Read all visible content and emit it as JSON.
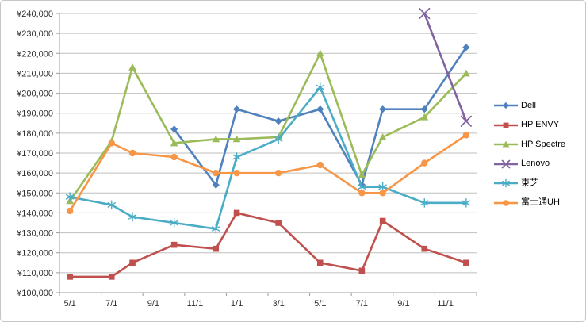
{
  "chart_data": {
    "type": "line",
    "title": "",
    "xlabel": "",
    "ylabel": "",
    "grid": "horizontal",
    "legend_position": "right",
    "y_axis": {
      "min": 100000,
      "max": 240000,
      "step": 10000,
      "prefix": "¥",
      "tick_labels": [
        "¥100,000",
        "¥110,000",
        "¥120,000",
        "¥130,000",
        "¥140,000",
        "¥150,000",
        "¥160,000",
        "¥170,000",
        "¥180,000",
        "¥190,000",
        "¥200,000",
        "¥210,000",
        "¥220,000",
        "¥230,000",
        "¥240,000"
      ]
    },
    "x_axis": {
      "slot_count": 20,
      "label_slots": [
        0,
        2,
        4,
        6,
        8,
        10,
        12,
        14,
        16,
        18
      ],
      "tick_labels": [
        "5/1",
        "7/1",
        "9/1",
        "11/1",
        "1/1",
        "3/1",
        "5/1",
        "7/1",
        "9/1",
        "11/1"
      ]
    },
    "point_slots": [
      0,
      2,
      3,
      5,
      7,
      8,
      10,
      12,
      14,
      15,
      17,
      19
    ],
    "series": [
      {
        "name": "Dell",
        "color": "#4F81BD",
        "marker": "diamond",
        "values": [
          null,
          null,
          null,
          182000,
          154000,
          192000,
          186000,
          192000,
          154000,
          192000,
          192000,
          223000
        ]
      },
      {
        "name": "HP ENVY",
        "color": "#C0504D",
        "marker": "square",
        "values": [
          108000,
          108000,
          115000,
          124000,
          122000,
          140000,
          135000,
          115000,
          111000,
          136000,
          122000,
          115000
        ]
      },
      {
        "name": "HP Spectre",
        "color": "#9BBB59",
        "marker": "triangle",
        "values": [
          146000,
          176000,
          213000,
          175000,
          177000,
          177000,
          178000,
          220000,
          159000,
          178000,
          188000,
          210000
        ]
      },
      {
        "name": "Lenovo",
        "color": "#8064A2",
        "marker": "x",
        "values": [
          null,
          null,
          null,
          null,
          null,
          null,
          null,
          null,
          null,
          null,
          240000,
          186000
        ]
      },
      {
        "name": "東芝",
        "color": "#4BACC6",
        "marker": "asterisk",
        "values": [
          148000,
          144000,
          138000,
          135000,
          132000,
          168000,
          177000,
          203000,
          153000,
          153000,
          145000,
          145000
        ]
      },
      {
        "name": "富士通UH",
        "color": "#F79646",
        "marker": "circle",
        "values": [
          141000,
          175000,
          170000,
          168000,
          160000,
          160000,
          160000,
          164000,
          150000,
          150000,
          165000,
          179000
        ]
      }
    ]
  }
}
